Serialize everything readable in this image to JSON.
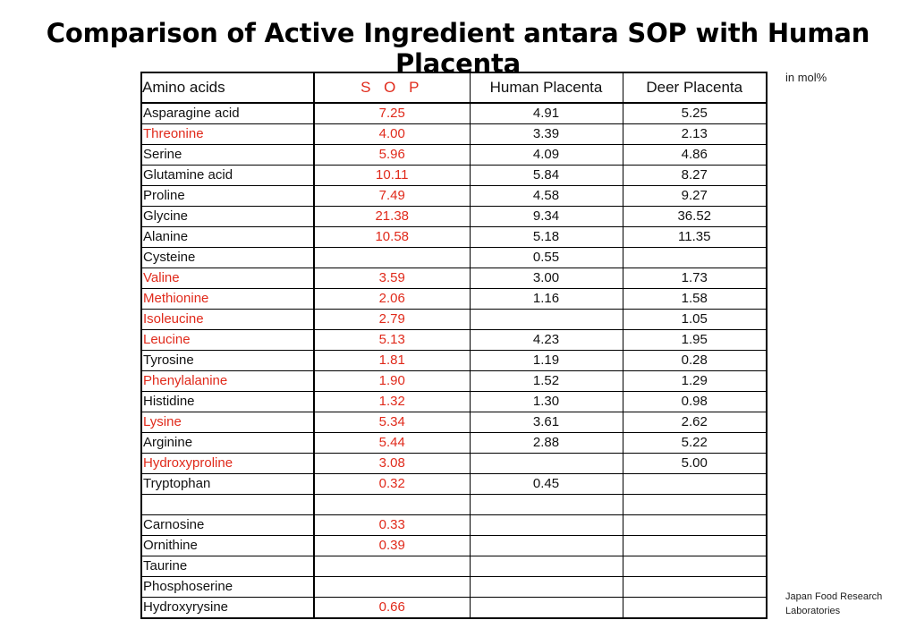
{
  "title": "Comparison of Active Ingredient antara SOP with Human Placenta",
  "unit_note": "in mol%",
  "source_line1": "Japan Food Research",
  "source_line2": "Laboratories",
  "accent_color": "#e02a1b",
  "table": {
    "headers": [
      "Amino acids",
      "S O P",
      "Human Placenta",
      "Deer Placenta"
    ],
    "rows": [
      {
        "name": "Asparagine acid",
        "indent": true,
        "name_red": false,
        "sop": "7.25",
        "human": "4.91",
        "deer": "5.25"
      },
      {
        "name": "Threonine",
        "indent": false,
        "name_red": true,
        "sop": "4.00",
        "human": "3.39",
        "deer": "2.13"
      },
      {
        "name": "Serine",
        "indent": false,
        "name_red": false,
        "sop": "5.96",
        "human": "4.09",
        "deer": "4.86"
      },
      {
        "name": "Glutamine acid",
        "indent": true,
        "name_red": false,
        "sop": "10.11",
        "human": "5.84",
        "deer": "8.27"
      },
      {
        "name": "Proline",
        "indent": false,
        "name_red": false,
        "sop": "7.49",
        "human": "4.58",
        "deer": "9.27"
      },
      {
        "name": "Glycine",
        "indent": false,
        "name_red": false,
        "sop": "21.38",
        "human": "9.34",
        "deer": "36.52"
      },
      {
        "name": "Alanine",
        "indent": false,
        "name_red": false,
        "sop": "10.58",
        "human": "5.18",
        "deer": "11.35"
      },
      {
        "name": "Cysteine",
        "indent": false,
        "name_red": false,
        "sop": "",
        "human": "0.55",
        "deer": ""
      },
      {
        "name": "Valine",
        "indent": false,
        "name_red": true,
        "sop": "3.59",
        "human": "3.00",
        "deer": "1.73"
      },
      {
        "name": "Methionine",
        "indent": false,
        "name_red": true,
        "sop": "2.06",
        "human": "1.16",
        "deer": "1.58"
      },
      {
        "name": "Isoleucine",
        "indent": false,
        "name_red": true,
        "sop": "2.79",
        "human": "",
        "deer": "1.05"
      },
      {
        "name": "Leucine",
        "indent": false,
        "name_red": true,
        "sop": "5.13",
        "human": "4.23",
        "deer": "1.95"
      },
      {
        "name": "Tyrosine",
        "indent": false,
        "name_red": false,
        "sop": "1.81",
        "human": "1.19",
        "deer": "0.28"
      },
      {
        "name": "Phenylalanine",
        "indent": false,
        "name_red": true,
        "sop": "1.90",
        "human": "1.52",
        "deer": "1.29"
      },
      {
        "name": "Histidine",
        "indent": false,
        "name_red": false,
        "sop": "1.32",
        "human": "1.30",
        "deer": "0.98"
      },
      {
        "name": "Lysine",
        "indent": false,
        "name_red": true,
        "sop": "5.34",
        "human": "3.61",
        "deer": "2.62"
      },
      {
        "name": "Arginine",
        "indent": false,
        "name_red": false,
        "sop": "5.44",
        "human": "2.88",
        "deer": "5.22"
      },
      {
        "name": "Hydroxyproline",
        "indent": false,
        "name_red": true,
        "sop": "3.08",
        "human": "",
        "deer": "5.00"
      },
      {
        "name": "Tryptophan",
        "indent": false,
        "name_red": false,
        "sop": "0.32",
        "human": "0.45",
        "deer": ""
      },
      {
        "name": "",
        "indent": false,
        "name_red": false,
        "sop": "",
        "human": "",
        "deer": ""
      },
      {
        "name": "Carnosine",
        "indent": false,
        "name_red": false,
        "sop": "0.33",
        "human": "",
        "deer": ""
      },
      {
        "name": "Ornithine",
        "indent": false,
        "name_red": false,
        "sop": "0.39",
        "human": "",
        "deer": ""
      },
      {
        "name": "Taurine",
        "indent": false,
        "name_red": false,
        "sop": "",
        "human": "",
        "deer": ""
      },
      {
        "name": "Phosphoserine",
        "indent": false,
        "name_red": false,
        "sop": "",
        "human": "",
        "deer": ""
      },
      {
        "name": "Hydroxyrysine",
        "indent": false,
        "name_red": false,
        "sop": "0.66",
        "human": "",
        "deer": ""
      }
    ]
  }
}
